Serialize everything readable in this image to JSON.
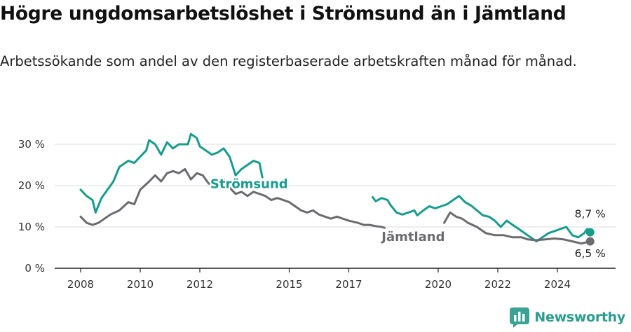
{
  "title": "Högre ungdomsarbetslöshet i Strömsund än i Jämtland",
  "subtitle": "Arbetssökande som andel av den registerbaserade arbetskraften månad för månad.",
  "brand": {
    "name": "Newsworthy",
    "icon": "newsworthy-logo-icon",
    "color": "#3aa395"
  },
  "chart_data": {
    "type": "line",
    "y_ticks": [
      0,
      10,
      20,
      30
    ],
    "y_tick_labels": [
      "0 %",
      "10 %",
      "20 %",
      "30 %"
    ],
    "x_ticks": [
      2008,
      2010,
      2012,
      2015,
      2017,
      2020,
      2022,
      2024
    ],
    "ylim": [
      0,
      33
    ],
    "xlim": [
      2007.1,
      2025.3
    ],
    "grid": true,
    "series": [
      {
        "name": "Strömsund",
        "color": "#159e8d",
        "end_value_label": "8,7 %",
        "points": [
          [
            2008.0,
            19
          ],
          [
            2008.2,
            17.5
          ],
          [
            2008.4,
            16.5
          ],
          [
            2008.5,
            13.5
          ],
          [
            2008.7,
            17
          ],
          [
            2008.9,
            19
          ],
          [
            2009.1,
            21
          ],
          [
            2009.3,
            24.5
          ],
          [
            2009.6,
            26
          ],
          [
            2009.8,
            25.5
          ],
          [
            2010.0,
            27
          ],
          [
            2010.2,
            28.5
          ],
          [
            2010.3,
            31
          ],
          [
            2010.5,
            30
          ],
          [
            2010.7,
            27.5
          ],
          [
            2010.9,
            30.5
          ],
          [
            2011.1,
            29
          ],
          [
            2011.3,
            30
          ],
          [
            2011.6,
            30
          ],
          [
            2011.7,
            32.5
          ],
          [
            2011.9,
            31.5
          ],
          [
            2012.0,
            29.5
          ],
          [
            2012.2,
            28.5
          ],
          [
            2012.4,
            27.5
          ],
          [
            2012.6,
            28
          ],
          [
            2012.8,
            29
          ],
          [
            2013.0,
            27
          ],
          [
            2013.2,
            22.5
          ],
          [
            2013.4,
            24
          ],
          [
            2013.6,
            25
          ],
          [
            2013.8,
            26
          ],
          [
            2014.0,
            25.5
          ],
          [
            2014.1,
            22
          ],
          [
            2017.8,
            17.2
          ],
          [
            2017.9,
            16.2
          ],
          [
            2018.1,
            17
          ],
          [
            2018.3,
            16.5
          ],
          [
            2018.4,
            15.3
          ],
          [
            2018.6,
            13.5
          ],
          [
            2018.8,
            13
          ],
          [
            2019.0,
            13.5
          ],
          [
            2019.2,
            14
          ],
          [
            2019.3,
            12.8
          ],
          [
            2019.5,
            14
          ],
          [
            2019.7,
            15
          ],
          [
            2019.9,
            14.5
          ],
          [
            2020.1,
            15
          ],
          [
            2020.3,
            15.5
          ],
          [
            2020.5,
            16.5
          ],
          [
            2020.7,
            17.5
          ],
          [
            2020.9,
            16
          ],
          [
            2021.1,
            15.2
          ],
          [
            2021.3,
            14
          ],
          [
            2021.5,
            12.8
          ],
          [
            2021.7,
            12.5
          ],
          [
            2021.9,
            11.5
          ],
          [
            2022.1,
            10
          ],
          [
            2022.3,
            11.5
          ],
          [
            2022.5,
            10.5
          ],
          [
            2022.7,
            9.5
          ],
          [
            2022.9,
            8.5
          ],
          [
            2023.1,
            7.5
          ],
          [
            2023.3,
            6.5
          ],
          [
            2023.5,
            7.5
          ],
          [
            2023.7,
            8.5
          ],
          [
            2023.9,
            9
          ],
          [
            2024.1,
            9.5
          ],
          [
            2024.3,
            10
          ],
          [
            2024.5,
            8
          ],
          [
            2024.7,
            7.5
          ],
          [
            2024.9,
            8.5
          ],
          [
            2025.0,
            9.5
          ],
          [
            2025.1,
            8.7
          ]
        ]
      },
      {
        "name": "Jämtland",
        "color": "#6b6b70",
        "end_value_label": "6,5 %",
        "points": [
          [
            2008.0,
            12.5
          ],
          [
            2008.2,
            11
          ],
          [
            2008.4,
            10.5
          ],
          [
            2008.6,
            11
          ],
          [
            2008.8,
            12
          ],
          [
            2009.0,
            13
          ],
          [
            2009.3,
            14
          ],
          [
            2009.6,
            16
          ],
          [
            2009.8,
            15.5
          ],
          [
            2010.0,
            19
          ],
          [
            2010.3,
            21
          ],
          [
            2010.5,
            22.5
          ],
          [
            2010.7,
            21
          ],
          [
            2010.9,
            23
          ],
          [
            2011.1,
            23.5
          ],
          [
            2011.3,
            23
          ],
          [
            2011.5,
            24
          ],
          [
            2011.7,
            21.5
          ],
          [
            2011.9,
            23
          ],
          [
            2012.1,
            22.5
          ],
          [
            2012.3,
            20.5
          ],
          [
            2012.6,
            20
          ],
          [
            2012.8,
            21.5
          ],
          [
            2013.0,
            19.5
          ],
          [
            2013.2,
            18
          ],
          [
            2013.4,
            18.5
          ],
          [
            2013.6,
            17.5
          ],
          [
            2013.8,
            18.5
          ],
          [
            2014.0,
            18
          ],
          [
            2014.2,
            17.5
          ],
          [
            2014.4,
            16.5
          ],
          [
            2014.6,
            17
          ],
          [
            2014.8,
            16.5
          ],
          [
            2015.0,
            16
          ],
          [
            2015.2,
            15
          ],
          [
            2015.4,
            14
          ],
          [
            2015.6,
            13.5
          ],
          [
            2015.8,
            14
          ],
          [
            2016.0,
            13
          ],
          [
            2016.2,
            12.5
          ],
          [
            2016.4,
            12
          ],
          [
            2016.6,
            12.5
          ],
          [
            2016.8,
            12
          ],
          [
            2017.0,
            11.5
          ],
          [
            2017.3,
            11
          ],
          [
            2017.5,
            10.5
          ],
          [
            2017.7,
            10.5
          ],
          [
            2017.9,
            10.2
          ],
          [
            2018.1,
            10
          ],
          [
            2018.2,
            9.8
          ],
          [
            2020.2,
            11
          ],
          [
            2020.4,
            13.5
          ],
          [
            2020.6,
            12.5
          ],
          [
            2020.8,
            12
          ],
          [
            2021.0,
            11
          ],
          [
            2021.3,
            10
          ],
          [
            2021.6,
            8.5
          ],
          [
            2021.9,
            8
          ],
          [
            2022.2,
            8
          ],
          [
            2022.5,
            7.5
          ],
          [
            2022.8,
            7.5
          ],
          [
            2023.0,
            7
          ],
          [
            2023.3,
            6.8
          ],
          [
            2023.6,
            7
          ],
          [
            2023.9,
            7.2
          ],
          [
            2024.2,
            7
          ],
          [
            2024.5,
            6.5
          ],
          [
            2024.8,
            6
          ],
          [
            2025.0,
            6.3
          ],
          [
            2025.1,
            6.5
          ]
        ]
      }
    ]
  }
}
